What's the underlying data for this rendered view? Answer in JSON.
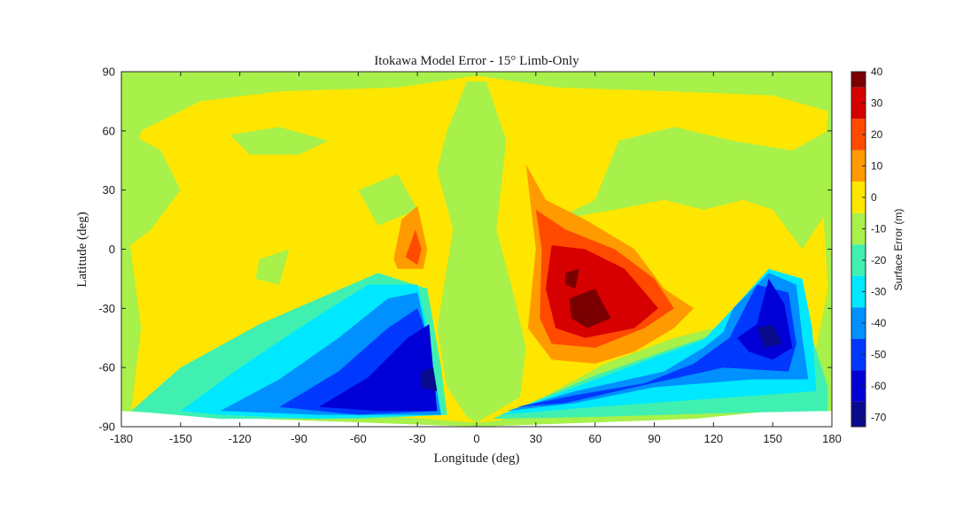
{
  "chart_data": {
    "type": "heatmap",
    "title": "Itokawa Model Error - 15° Limb-Only",
    "xlabel": "Longitude (deg)",
    "ylabel": "Latitude (deg)",
    "xlim": [
      -180,
      180
    ],
    "ylim": [
      -90,
      90
    ],
    "xticks": [
      -180,
      -150,
      -120,
      -90,
      -60,
      -30,
      0,
      30,
      60,
      90,
      120,
      150,
      180
    ],
    "yticks": [
      90,
      60,
      30,
      0,
      -30,
      -60,
      -90
    ],
    "colorbar": {
      "label": "Surface Error (m)",
      "range": [
        -73,
        40
      ],
      "ticks": [
        40,
        30,
        20,
        10,
        0,
        -10,
        -20,
        -30,
        -40,
        -50,
        -60,
        -70
      ],
      "colormap": "jet"
    },
    "levels": [
      {
        "min": -73,
        "max": -65,
        "color": "#0a0a8c"
      },
      {
        "min": -65,
        "max": -55,
        "color": "#0000d6"
      },
      {
        "min": -55,
        "max": -45,
        "color": "#0038ff"
      },
      {
        "min": -45,
        "max": -35,
        "color": "#0090ff"
      },
      {
        "min": -35,
        "max": -25,
        "color": "#00e8ff"
      },
      {
        "min": -25,
        "max": -15,
        "color": "#40f0b0"
      },
      {
        "min": -15,
        "max": -5,
        "color": "#a8f04a"
      },
      {
        "min": -5,
        "max": 5,
        "color": "#ffe600"
      },
      {
        "min": 5,
        "max": 15,
        "color": "#ff9a00"
      },
      {
        "min": 15,
        "max": 25,
        "color": "#ff4a00"
      },
      {
        "min": 25,
        "max": 35,
        "color": "#d70000"
      },
      {
        "min": 35,
        "max": 40,
        "color": "#7a0000"
      }
    ],
    "regions": [
      {
        "value": -10,
        "lonlat": [
          [
            -180,
            -82
          ],
          [
            -180,
            90
          ],
          [
            180,
            90
          ],
          [
            180,
            -82
          ],
          [
            150,
            -82
          ],
          [
            110,
            -86
          ],
          [
            0,
            -90
          ],
          [
            -110,
            -86
          ]
        ]
      },
      {
        "value": 0,
        "lonlat": [
          [
            -175,
            -82
          ],
          [
            -170,
            -40
          ],
          [
            -178,
            20
          ],
          [
            -170,
            60
          ],
          [
            -140,
            75
          ],
          [
            -100,
            80
          ],
          [
            -40,
            82
          ],
          [
            0,
            88
          ],
          [
            40,
            82
          ],
          [
            100,
            80
          ],
          [
            150,
            78
          ],
          [
            178,
            70
          ],
          [
            175,
            30
          ],
          [
            178,
            -20
          ],
          [
            170,
            -60
          ],
          [
            165,
            -80
          ],
          [
            130,
            -80
          ],
          [
            80,
            -82
          ],
          [
            30,
            -85
          ],
          [
            0,
            -88
          ],
          [
            -40,
            -85
          ],
          [
            -110,
            -84
          ]
        ]
      },
      {
        "value": -10,
        "lonlat": [
          [
            -178,
            60
          ],
          [
            -160,
            50
          ],
          [
            -150,
            30
          ],
          [
            -165,
            10
          ],
          [
            -178,
            0
          ]
        ]
      },
      {
        "value": -10,
        "lonlat": [
          [
            -125,
            58
          ],
          [
            -100,
            62
          ],
          [
            -75,
            55
          ],
          [
            -90,
            48
          ],
          [
            -115,
            48
          ]
        ]
      },
      {
        "value": -10,
        "lonlat": [
          [
            -110,
            -5
          ],
          [
            -95,
            0
          ],
          [
            -100,
            -18
          ],
          [
            -112,
            -15
          ]
        ]
      },
      {
        "value": -10,
        "lonlat": [
          [
            -60,
            30
          ],
          [
            -40,
            38
          ],
          [
            -30,
            20
          ],
          [
            -50,
            12
          ]
        ]
      },
      {
        "value": -10,
        "lonlat": [
          [
            -15,
            60
          ],
          [
            -5,
            85
          ],
          [
            5,
            85
          ],
          [
            15,
            55
          ],
          [
            10,
            10
          ],
          [
            18,
            -20
          ],
          [
            25,
            -50
          ],
          [
            22,
            -75
          ],
          [
            5,
            -85
          ],
          [
            0,
            -88
          ],
          [
            -5,
            -85
          ],
          [
            -15,
            -70
          ],
          [
            -20,
            -40
          ],
          [
            -12,
            10
          ],
          [
            -20,
            40
          ]
        ]
      },
      {
        "value": -10,
        "lonlat": [
          [
            40,
            15
          ],
          [
            60,
            25
          ],
          [
            72,
            55
          ],
          [
            100,
            62
          ],
          [
            130,
            55
          ],
          [
            160,
            50
          ],
          [
            178,
            60
          ],
          [
            178,
            20
          ],
          [
            165,
            0
          ],
          [
            150,
            20
          ],
          [
            135,
            25
          ],
          [
            115,
            20
          ],
          [
            95,
            25
          ],
          [
            70,
            20
          ]
        ]
      },
      {
        "value": -10,
        "lonlat": [
          [
            65,
            -58
          ],
          [
            100,
            -45
          ],
          [
            120,
            -40
          ],
          [
            135,
            -30
          ],
          [
            160,
            -40
          ],
          [
            175,
            -55
          ],
          [
            178,
            -80
          ],
          [
            140,
            -82
          ],
          [
            90,
            -82
          ],
          [
            40,
            -84
          ],
          [
            10,
            -88
          ]
        ]
      },
      {
        "value": -20,
        "lonlat": [
          [
            -175,
            -82
          ],
          [
            -150,
            -60
          ],
          [
            -110,
            -38
          ],
          [
            -80,
            -25
          ],
          [
            -50,
            -12
          ],
          [
            -25,
            -20
          ],
          [
            -18,
            -60
          ],
          [
            -15,
            -84
          ],
          [
            -60,
            -86
          ],
          [
            -130,
            -86
          ]
        ]
      },
      {
        "value": -20,
        "lonlat": [
          [
            8,
            -86
          ],
          [
            60,
            -64
          ],
          [
            100,
            -50
          ],
          [
            130,
            -40
          ],
          [
            150,
            -30
          ],
          [
            170,
            -45
          ],
          [
            178,
            -70
          ],
          [
            178,
            -82
          ],
          [
            130,
            -83
          ],
          [
            60,
            -85
          ]
        ]
      },
      {
        "value": -30,
        "lonlat": [
          [
            -150,
            -82
          ],
          [
            -120,
            -60
          ],
          [
            -90,
            -40
          ],
          [
            -55,
            -18
          ],
          [
            -30,
            -18
          ],
          [
            -25,
            -40
          ],
          [
            -18,
            -84
          ],
          [
            -80,
            -86
          ],
          [
            -130,
            -84
          ]
        ]
      },
      {
        "value": -30,
        "lonlat": [
          [
            12,
            -84
          ],
          [
            50,
            -70
          ],
          [
            90,
            -55
          ],
          [
            115,
            -46
          ],
          [
            130,
            -30
          ],
          [
            148,
            -10
          ],
          [
            165,
            -15
          ],
          [
            170,
            -40
          ],
          [
            172,
            -72
          ],
          [
            130,
            -75
          ],
          [
            60,
            -80
          ]
        ]
      },
      {
        "value": -40,
        "lonlat": [
          [
            -130,
            -82
          ],
          [
            -100,
            -66
          ],
          [
            -70,
            -45
          ],
          [
            -45,
            -25
          ],
          [
            -30,
            -22
          ],
          [
            -24,
            -50
          ],
          [
            -18,
            -84
          ],
          [
            -80,
            -84
          ]
        ]
      },
      {
        "value": -40,
        "lonlat": [
          [
            15,
            -82
          ],
          [
            50,
            -72
          ],
          [
            95,
            -62
          ],
          [
            115,
            -50
          ],
          [
            125,
            -42
          ],
          [
            130,
            -30
          ],
          [
            148,
            -12
          ],
          [
            162,
            -18
          ],
          [
            165,
            -45
          ],
          [
            168,
            -66
          ],
          [
            140,
            -66
          ],
          [
            90,
            -70
          ],
          [
            50,
            -78
          ]
        ]
      },
      {
        "value": -50,
        "lonlat": [
          [
            -100,
            -80
          ],
          [
            -70,
            -62
          ],
          [
            -45,
            -40
          ],
          [
            -30,
            -30
          ],
          [
            -23,
            -50
          ],
          [
            -20,
            -82
          ],
          [
            -60,
            -84
          ]
        ]
      },
      {
        "value": -50,
        "lonlat": [
          [
            20,
            -80
          ],
          [
            50,
            -74
          ],
          [
            85,
            -68
          ],
          [
            110,
            -58
          ],
          [
            128,
            -45
          ],
          [
            142,
            -18
          ],
          [
            158,
            -22
          ],
          [
            162,
            -48
          ],
          [
            158,
            -62
          ],
          [
            125,
            -60
          ],
          [
            80,
            -70
          ],
          [
            45,
            -78
          ]
        ]
      },
      {
        "value": -60,
        "lonlat": [
          [
            -80,
            -80
          ],
          [
            -55,
            -65
          ],
          [
            -35,
            -45
          ],
          [
            -24,
            -38
          ],
          [
            -22,
            -62
          ],
          [
            -20,
            -82
          ],
          [
            -50,
            -82
          ]
        ]
      },
      {
        "value": -60,
        "lonlat": [
          [
            132,
            -45
          ],
          [
            142,
            -38
          ],
          [
            148,
            -15
          ],
          [
            156,
            -28
          ],
          [
            160,
            -50
          ],
          [
            150,
            -56
          ],
          [
            138,
            -52
          ]
        ]
      },
      {
        "value": -70,
        "lonlat": [
          [
            -28,
            -62
          ],
          [
            -22,
            -60
          ],
          [
            -20,
            -72
          ],
          [
            -28,
            -70
          ]
        ]
      },
      {
        "value": -70,
        "lonlat": [
          [
            142,
            -40
          ],
          [
            150,
            -38
          ],
          [
            155,
            -48
          ],
          [
            146,
            -50
          ]
        ]
      },
      {
        "value": 10,
        "lonlat": [
          [
            -42,
            -5
          ],
          [
            -38,
            15
          ],
          [
            -30,
            22
          ],
          [
            -25,
            0
          ],
          [
            -27,
            -10
          ],
          [
            -40,
            -10
          ]
        ]
      },
      {
        "value": 20,
        "lonlat": [
          [
            -36,
            -4
          ],
          [
            -31,
            10
          ],
          [
            -28,
            0
          ],
          [
            -30,
            -8
          ]
        ]
      },
      {
        "value": 10,
        "lonlat": [
          [
            25,
            43
          ],
          [
            35,
            25
          ],
          [
            55,
            15
          ],
          [
            80,
            0
          ],
          [
            95,
            -20
          ],
          [
            110,
            -30
          ],
          [
            100,
            -40
          ],
          [
            80,
            -52
          ],
          [
            60,
            -58
          ],
          [
            38,
            -56
          ],
          [
            26,
            -40
          ],
          [
            30,
            0
          ]
        ]
      },
      {
        "value": 20,
        "lonlat": [
          [
            30,
            20
          ],
          [
            45,
            10
          ],
          [
            70,
            0
          ],
          [
            90,
            -15
          ],
          [
            100,
            -30
          ],
          [
            85,
            -40
          ],
          [
            60,
            -50
          ],
          [
            38,
            -48
          ],
          [
            32,
            -35
          ],
          [
            33,
            0
          ]
        ]
      },
      {
        "value": 30,
        "lonlat": [
          [
            38,
            2
          ],
          [
            55,
            0
          ],
          [
            75,
            -10
          ],
          [
            92,
            -30
          ],
          [
            80,
            -40
          ],
          [
            55,
            -45
          ],
          [
            40,
            -40
          ],
          [
            35,
            -20
          ]
        ]
      },
      {
        "value": 40,
        "lonlat": [
          [
            47,
            -25
          ],
          [
            60,
            -20
          ],
          [
            68,
            -35
          ],
          [
            56,
            -40
          ],
          [
            48,
            -35
          ]
        ]
      },
      {
        "value": 40,
        "lonlat": [
          [
            45,
            -12
          ],
          [
            52,
            -10
          ],
          [
            50,
            -20
          ],
          [
            45,
            -18
          ]
        ]
      }
    ]
  }
}
